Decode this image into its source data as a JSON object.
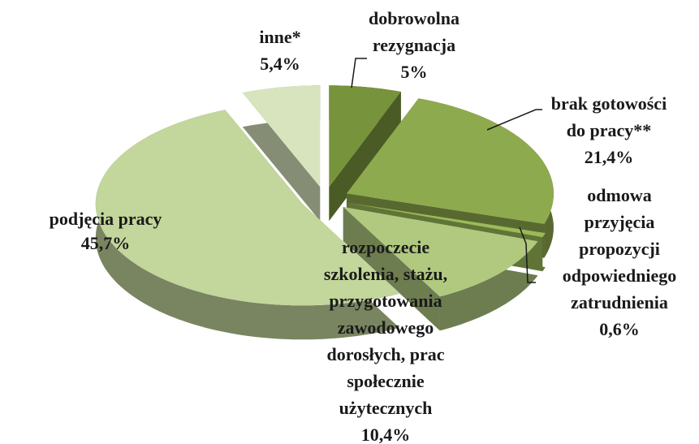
{
  "chart_data": {
    "type": "pie3d",
    "categories": [
      [
        "dobrowolna",
        "rezygnacja"
      ],
      [
        "brak gotowości",
        "do pracy**"
      ],
      [
        "odmowa",
        "przyjęcia",
        "propozycji",
        "odpowiedniego",
        "zatrudnienia"
      ],
      [
        "rozpoczecie",
        "szkolenia, stażu,",
        "przygotowania",
        "zawodowego",
        "dorosłych, prac",
        "społecznie",
        "użytecznych"
      ],
      [
        "podjęcia pracy"
      ],
      [
        "inne*"
      ]
    ],
    "values": [
      5,
      21.4,
      0.6,
      10.4,
      45.7,
      5.4
    ],
    "value_labels": [
      "5%",
      "21,4%",
      "0,6%",
      "10,4%",
      "45,7%",
      "5,4%"
    ],
    "colors": [
      "#77933c",
      "#8eaa4e",
      "#9bbb59",
      "#b0c97f",
      "#c3d69b",
      "#d7e4bd"
    ]
  }
}
